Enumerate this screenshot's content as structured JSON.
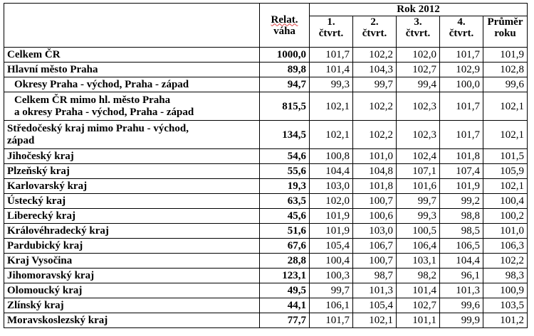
{
  "header": {
    "weight_label_1": "Relat.",
    "weight_label_2": "váha",
    "year_label": "Rok 2012",
    "quarters": [
      {
        "top": "1.",
        "bottom": "čtvrt."
      },
      {
        "top": "2.",
        "bottom": "čtvrt."
      },
      {
        "top": "3.",
        "bottom": "čtvrt."
      },
      {
        "top": "4.",
        "bottom": "čtvrt."
      },
      {
        "top": "Průměr",
        "bottom": "roku"
      }
    ]
  },
  "rows": [
    {
      "name": "Celkem ČR",
      "weight": "1000,0",
      "values": [
        "101,7",
        "102,2",
        "102,0",
        "101,7",
        "101,9"
      ]
    },
    {
      "name": "Hlavní město Praha",
      "weight": "89,8",
      "values": [
        "101,4",
        "104,3",
        "102,7",
        "102,9",
        "102,8"
      ]
    },
    {
      "name": "Okresy Praha - východ, Praha - západ",
      "weight": "94,7",
      "values": [
        "99,3",
        "99,7",
        "99,4",
        "100,0",
        "99,6"
      ]
    },
    {
      "name": "Celkem ČR mimo hl. město Praha",
      "name2": "a okresy Praha - východ, Praha - západ",
      "weight": "815,5",
      "values": [
        "102,1",
        "102,2",
        "102,3",
        "101,7",
        "102,1"
      ]
    },
    {
      "name": "Středočeský kraj mimo Prahu - východ,",
      "name2": "západ",
      "weight": "134,5",
      "values": [
        "102,1",
        "102,2",
        "102,3",
        "101,7",
        "102,1"
      ]
    },
    {
      "name": "Jihočeský kraj",
      "weight": "54,6",
      "values": [
        "100,8",
        "101,0",
        "102,4",
        "101,8",
        "101,5"
      ]
    },
    {
      "name": "Plzeňský kraj",
      "weight": "55,6",
      "values": [
        "104,4",
        "104,8",
        "107,1",
        "107,4",
        "105,9"
      ]
    },
    {
      "name": "Karlovarský kraj",
      "weight": "19,3",
      "values": [
        "103,0",
        "101,8",
        "101,6",
        "101,9",
        "102,1"
      ]
    },
    {
      "name": "Ústecký kraj",
      "weight": "63,5",
      "values": [
        "102,0",
        "100,7",
        "99,7",
        "99,2",
        "100,4"
      ]
    },
    {
      "name": "Liberecký kraj",
      "weight": "45,6",
      "values": [
        "101,9",
        "100,6",
        "99,3",
        "98,8",
        "100,2"
      ]
    },
    {
      "name": "Královéhradecký kraj",
      "weight": "51,6",
      "values": [
        "101,9",
        "103,0",
        "100,5",
        "98,5",
        "101,0"
      ]
    },
    {
      "name": "Pardubický kraj",
      "weight": "67,6",
      "values": [
        "105,4",
        "106,7",
        "106,4",
        "106,5",
        "106,3"
      ]
    },
    {
      "name": "Kraj Vysočina",
      "weight": "28,8",
      "values": [
        "100,4",
        "100,7",
        "103,1",
        "104,4",
        "102,2"
      ]
    },
    {
      "name": "Jihomoravský kraj",
      "weight": "123,1",
      "values": [
        "100,3",
        "98,7",
        "98,2",
        "96,1",
        "98,3"
      ]
    },
    {
      "name": "Olomoucký kraj",
      "weight": "49,5",
      "values": [
        "99,7",
        "101,3",
        "101,4",
        "101,3",
        "100,9"
      ]
    },
    {
      "name": "Zlínský kraj",
      "weight": "44,1",
      "values": [
        "106,1",
        "105,4",
        "102,7",
        "99,6",
        "103,5"
      ]
    },
    {
      "name": "Moravskoslezský kraj",
      "weight": "77,7",
      "values": [
        "101,7",
        "102,1",
        "101,1",
        "99,9",
        "101,2"
      ]
    }
  ]
}
